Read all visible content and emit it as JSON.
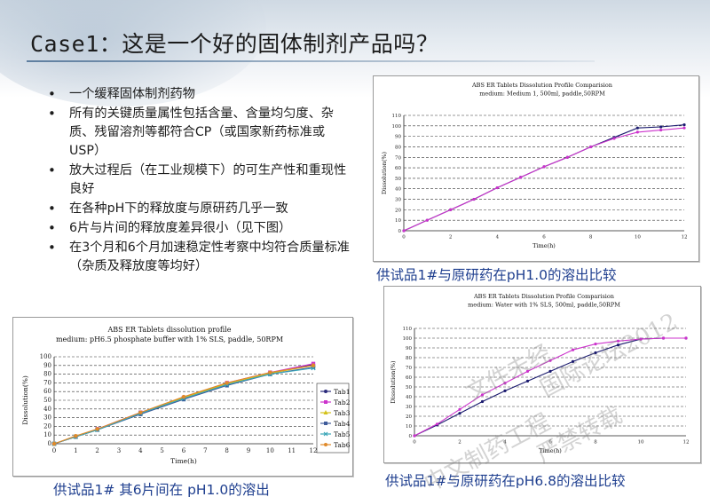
{
  "slide": {
    "title_latin": "Case1：",
    "title_cjk": "这是一个好的固体制剂产品吗？"
  },
  "bullets": [
    "一个缓释固体制剂药物",
    "所有的关键质量属性包括含量、含量均匀度、杂质、残留溶剂等都符合CP（或国家新药标准或USP）",
    "放大过程后（在工业规模下）的可生产性和重现性良好",
    "在各种pH下的释放度与原研药几乎一致",
    "6片与片间的释放度差异很小（见下图）",
    "在3个月和6个月加速稳定性考察中均符合质量标准（杂质及释放度等均好）"
  ],
  "captions": {
    "top_right": "供试品1#与原研药在pH1.0的溶出比较",
    "bottom_left": "供试品1# 其6片间在 pH1.0的溶出",
    "bottom_right": "供试品1#与原研药在pH6.8的溶出比较"
  },
  "watermark": {
    "line1": "文件未经",
    "line2": "国际论坛2012",
    "line3": "严禁转载",
    "line4": "中文制药工程"
  },
  "chart_data": [
    {
      "type": "line",
      "title": "ABS ER Tablets Dissolution Profile Comparision",
      "subtitle": "medium: Medium 1, 500ml, paddle,50RPM",
      "xlabel": "Time(h)",
      "ylabel": "Dissolution(%)",
      "xlim": [
        0,
        12
      ],
      "ylim": [
        0,
        110
      ],
      "xticks": [
        0,
        2,
        4,
        6,
        8,
        10,
        12
      ],
      "yticks": [
        0,
        10,
        20,
        30,
        40,
        50,
        60,
        70,
        80,
        90,
        100,
        110
      ],
      "grid": "horizontal dashed",
      "series": [
        {
          "color": "#1a1a6e",
          "x": [
            0,
            1,
            2,
            3,
            4,
            5,
            6,
            7,
            8,
            9,
            10,
            11,
            12
          ],
          "y": [
            0,
            10,
            20,
            30,
            41,
            51,
            61,
            70,
            80,
            89,
            98,
            99,
            101
          ]
        },
        {
          "color": "#cc33cc",
          "x": [
            0,
            1,
            2,
            3,
            4,
            5,
            6,
            7,
            8,
            9,
            10,
            11,
            12
          ],
          "y": [
            0,
            10,
            20,
            30,
            41,
            51,
            61,
            70,
            80,
            88,
            94,
            96,
            98
          ]
        }
      ]
    },
    {
      "type": "line",
      "title": "ABS ER Tablets dissolution profile",
      "subtitle": "medium: pH6.5 phosphate buffer with 1% SLS, paddle, 50RPM",
      "xlabel": "Time(h)",
      "ylabel": "Dissolution(%)",
      "xlim": [
        0,
        12
      ],
      "ylim": [
        0,
        100
      ],
      "xticks": [
        0,
        1,
        2,
        3,
        4,
        5,
        6,
        7,
        8,
        9,
        10,
        11,
        12
      ],
      "yticks": [
        0,
        10,
        20,
        30,
        40,
        50,
        60,
        70,
        80,
        90,
        100
      ],
      "grid": "horizontal dashed",
      "legend": "right",
      "series": [
        {
          "name": "Tab1",
          "color": "#2a2a7a",
          "x": [
            0,
            1,
            2,
            4,
            6,
            8,
            10,
            12
          ],
          "y": [
            0,
            8,
            16,
            35,
            52,
            68,
            81,
            91
          ]
        },
        {
          "name": "Tab2",
          "color": "#cc33cc",
          "x": [
            0,
            1,
            2,
            4,
            6,
            8,
            10,
            12
          ],
          "y": [
            0,
            8,
            17,
            36,
            53,
            70,
            82,
            92
          ]
        },
        {
          "name": "Tab3",
          "color": "#d4c21a",
          "x": [
            0,
            1,
            2,
            4,
            6,
            8,
            10,
            12
          ],
          "y": [
            0,
            8,
            16,
            35,
            53,
            69,
            81,
            90
          ]
        },
        {
          "name": "Tab4",
          "color": "#3e5b9a",
          "x": [
            0,
            1,
            2,
            4,
            6,
            8,
            10,
            12
          ],
          "y": [
            0,
            8,
            16,
            34,
            51,
            67,
            80,
            88
          ]
        },
        {
          "name": "Tab5",
          "color": "#3aa6b8",
          "x": [
            0,
            1,
            2,
            4,
            6,
            8,
            10,
            12
          ],
          "y": [
            0,
            8,
            16,
            35,
            52,
            68,
            80,
            87
          ]
        },
        {
          "name": "Tab6",
          "color": "#e08a2a",
          "x": [
            0,
            1,
            2,
            4,
            6,
            8,
            10,
            12
          ],
          "y": [
            0,
            9,
            17,
            36,
            54,
            70,
            82,
            90
          ]
        }
      ]
    },
    {
      "type": "line",
      "title": "ABS ER Tablets Dissolution Profile Comparision",
      "subtitle": "medium: Water with 1% SLS, 500ml, paddle,50RPM",
      "xlabel": "Time(h)",
      "ylabel": "Dissolution(%)",
      "xlim": [
        0,
        12
      ],
      "ylim": [
        0,
        110
      ],
      "xticks": [
        0,
        2,
        4,
        6,
        8,
        10,
        12
      ],
      "yticks": [
        0,
        10,
        20,
        30,
        40,
        50,
        60,
        70,
        80,
        90,
        100,
        110
      ],
      "grid": "horizontal dashed",
      "series": [
        {
          "color": "#1a1a6e",
          "x": [
            0,
            1,
            2,
            3,
            4,
            5,
            6,
            7,
            8,
            9,
            10,
            11,
            12
          ],
          "y": [
            0,
            11,
            23,
            35,
            46,
            56,
            66,
            76,
            85,
            93,
            99,
            100,
            100
          ]
        },
        {
          "color": "#cc33cc",
          "x": [
            0,
            1,
            2,
            3,
            4,
            5,
            6,
            7,
            8,
            9,
            10,
            11,
            12
          ],
          "y": [
            0,
            12,
            27,
            42,
            54,
            66,
            77,
            88,
            94,
            97,
            99,
            100,
            100
          ]
        }
      ]
    }
  ]
}
